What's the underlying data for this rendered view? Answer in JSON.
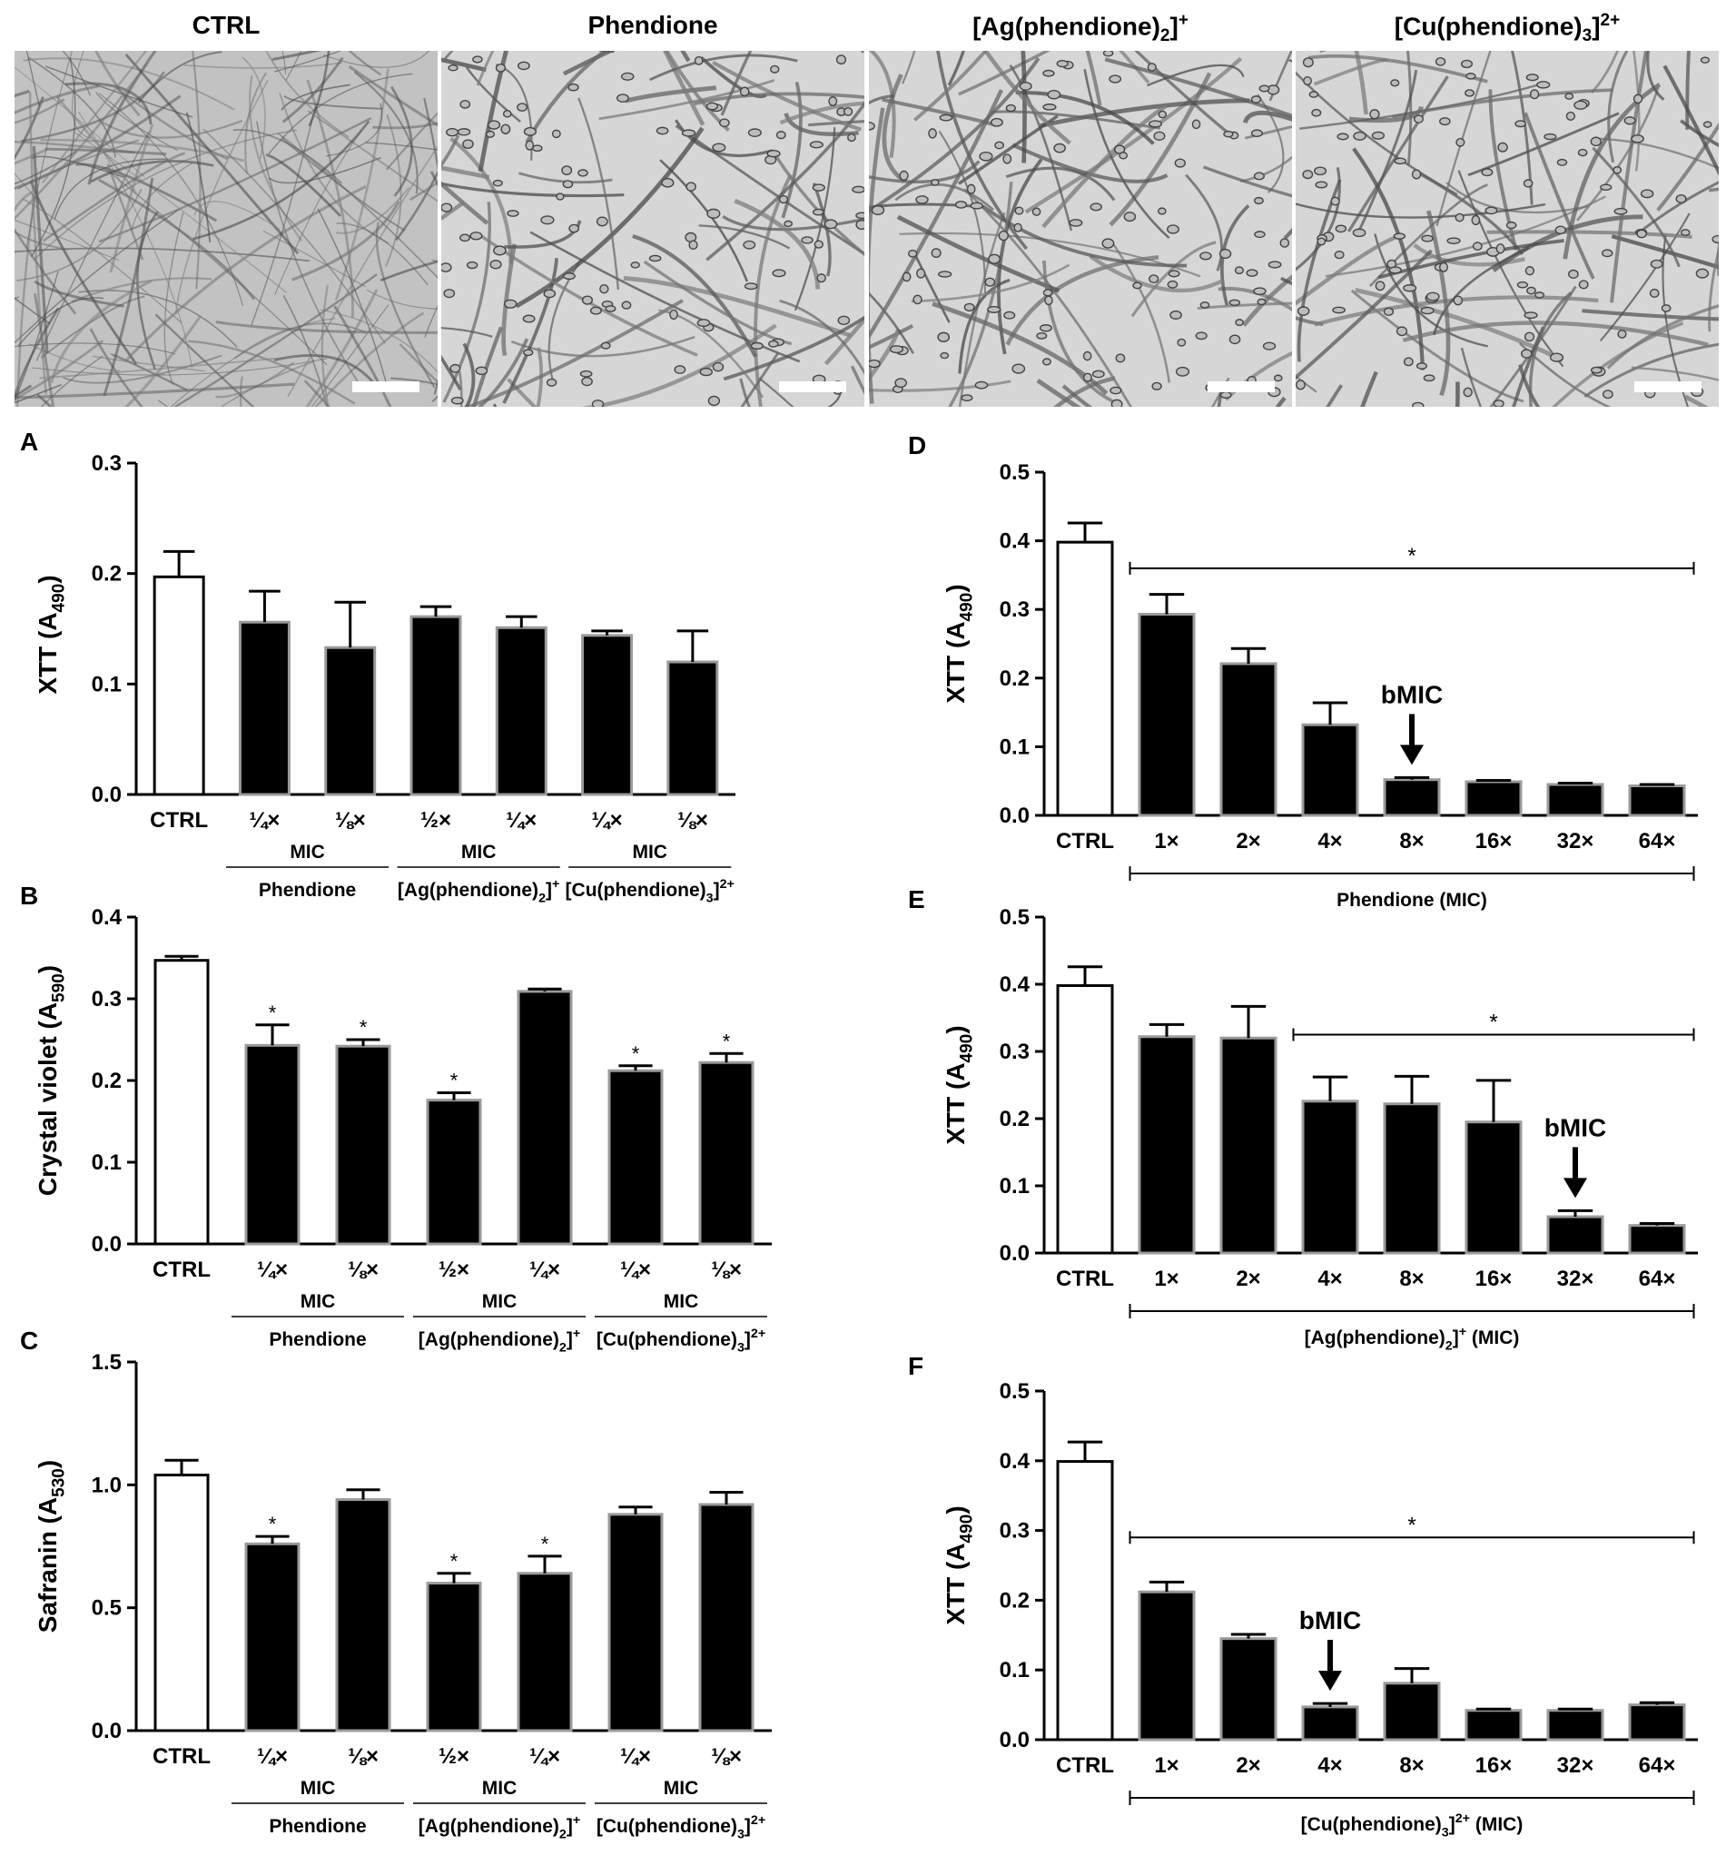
{
  "micrographs": [
    {
      "title_parts": [
        {
          "t": "CTRL"
        }
      ],
      "style": "dense"
    },
    {
      "title_parts": [
        {
          "t": "Phendione"
        }
      ],
      "style": "sparse"
    },
    {
      "title_parts": [
        {
          "t": "[Ag(phendione)"
        },
        {
          "t": "2",
          "sub": true
        },
        {
          "t": "]"
        },
        {
          "t": "+",
          "sup": true
        }
      ],
      "style": "sparse"
    },
    {
      "title_parts": [
        {
          "t": "[Cu(phendione)"
        },
        {
          "t": "3",
          "sub": true
        },
        {
          "t": "]"
        },
        {
          "t": "2+",
          "sup": true
        }
      ],
      "style": "sparse"
    }
  ],
  "chart_data": [
    {
      "panel": "A",
      "type": "bar",
      "ylabel": [
        {
          "t": "XTT (A"
        },
        {
          "t": "490",
          "sub": true
        },
        {
          "t": ")"
        }
      ],
      "ylim": [
        0,
        0.3
      ],
      "yticks": [
        "0.0",
        "0.1",
        "0.2",
        "0.3"
      ],
      "categories": [
        "CTRL",
        "¼×",
        "⅛×",
        "½×",
        "¼×",
        "¼×",
        "⅛×"
      ],
      "values": [
        0.197,
        0.156,
        0.133,
        0.161,
        0.151,
        0.144,
        0.12
      ],
      "errors": [
        0.023,
        0.028,
        0.041,
        0.009,
        0.01,
        0.004,
        0.028
      ],
      "significant": [
        false,
        false,
        false,
        false,
        false,
        false,
        false
      ],
      "bar_fill": [
        "white",
        "black",
        "black",
        "black",
        "black",
        "black",
        "black"
      ],
      "groups": [
        {
          "label": "MIC",
          "name": [
            {
              "t": "Phendione"
            }
          ],
          "from": 1,
          "to": 2
        },
        {
          "label": "MIC",
          "name": [
            {
              "t": "[Ag(phendione)"
            },
            {
              "t": "2",
              "sub": true
            },
            {
              "t": "]"
            },
            {
              "t": "+",
              "sup": true
            }
          ],
          "from": 3,
          "to": 4
        },
        {
          "label": "MIC",
          "name": [
            {
              "t": "[Cu(phendione)"
            },
            {
              "t": "3",
              "sub": true
            },
            {
              "t": "]"
            },
            {
              "t": "2+",
              "sup": true
            }
          ],
          "from": 5,
          "to": 6
        }
      ]
    },
    {
      "panel": "B",
      "type": "bar",
      "ylabel": [
        {
          "t": "Crystal violet (A"
        },
        {
          "t": "590",
          "sub": true
        },
        {
          "t": ")"
        }
      ],
      "ylim": [
        0,
        0.4
      ],
      "yticks": [
        "0.0",
        "0.1",
        "0.2",
        "0.3",
        "0.4"
      ],
      "categories": [
        "CTRL",
        "¼×",
        "⅛×",
        "½×",
        "¼×",
        "¼×",
        "⅛×"
      ],
      "values": [
        0.347,
        0.243,
        0.242,
        0.176,
        0.309,
        0.212,
        0.222
      ],
      "errors": [
        0.005,
        0.025,
        0.008,
        0.009,
        0.003,
        0.006,
        0.011
      ],
      "significant": [
        false,
        true,
        true,
        true,
        false,
        true,
        true
      ],
      "star": "*",
      "bar_fill": [
        "white",
        "black",
        "black",
        "black",
        "black",
        "black",
        "black"
      ],
      "groups": [
        {
          "label": "MIC",
          "name": [
            {
              "t": "Phendione"
            }
          ],
          "from": 1,
          "to": 2
        },
        {
          "label": "MIC",
          "name": [
            {
              "t": "[Ag(phendione)"
            },
            {
              "t": "2",
              "sub": true
            },
            {
              "t": "]"
            },
            {
              "t": "+",
              "sup": true
            }
          ],
          "from": 3,
          "to": 4
        },
        {
          "label": "MIC",
          "name": [
            {
              "t": "[Cu(phendione)"
            },
            {
              "t": "3",
              "sub": true
            },
            {
              "t": "]"
            },
            {
              "t": "2+",
              "sup": true
            }
          ],
          "from": 5,
          "to": 6
        }
      ]
    },
    {
      "panel": "C",
      "type": "bar",
      "ylabel": [
        {
          "t": "Safranin (A"
        },
        {
          "t": "530",
          "sub": true
        },
        {
          "t": ")"
        }
      ],
      "ylim": [
        0,
        1.5
      ],
      "yticks": [
        "0.0",
        "0.5",
        "1.0",
        "1.5"
      ],
      "categories": [
        "CTRL",
        "¼×",
        "⅛×",
        "½×",
        "¼×",
        "¼×",
        "⅛×"
      ],
      "values": [
        1.04,
        0.76,
        0.94,
        0.6,
        0.64,
        0.88,
        0.92
      ],
      "errors": [
        0.06,
        0.03,
        0.04,
        0.04,
        0.07,
        0.03,
        0.05
      ],
      "significant": [
        false,
        true,
        false,
        true,
        true,
        false,
        false
      ],
      "star": "*",
      "bar_fill": [
        "white",
        "black",
        "black",
        "black",
        "black",
        "black",
        "black"
      ],
      "groups": [
        {
          "label": "MIC",
          "name": [
            {
              "t": "Phendione"
            }
          ],
          "from": 1,
          "to": 2
        },
        {
          "label": "MIC",
          "name": [
            {
              "t": "[Ag(phendione)"
            },
            {
              "t": "2",
              "sub": true
            },
            {
              "t": "]"
            },
            {
              "t": "+",
              "sup": true
            }
          ],
          "from": 3,
          "to": 4
        },
        {
          "label": "MIC",
          "name": [
            {
              "t": "[Cu(phendione)"
            },
            {
              "t": "3",
              "sub": true
            },
            {
              "t": "]"
            },
            {
              "t": "2+",
              "sup": true
            }
          ],
          "from": 5,
          "to": 6
        }
      ]
    },
    {
      "panel": "D",
      "type": "bar",
      "ylabel": [
        {
          "t": "XTT (A"
        },
        {
          "t": "490",
          "sub": true
        },
        {
          "t": ")"
        }
      ],
      "ylim": [
        0,
        0.5
      ],
      "yticks": [
        "0.0",
        "0.1",
        "0.2",
        "0.3",
        "0.4",
        "0.5"
      ],
      "categories": [
        "CTRL",
        "1×",
        "2×",
        "4×",
        "8×",
        "16×",
        "32×",
        "64×"
      ],
      "values": [
        0.398,
        0.293,
        0.221,
        0.132,
        0.052,
        0.049,
        0.045,
        0.043
      ],
      "errors": [
        0.028,
        0.029,
        0.022,
        0.032,
        0.003,
        0.002,
        0.002,
        0.002
      ],
      "bar_fill": [
        "white",
        "black",
        "black",
        "black",
        "black",
        "black",
        "black",
        "black"
      ],
      "significance_bracket": {
        "from": 1,
        "to": 7,
        "value": 0.36,
        "label": "*"
      },
      "bmic": {
        "label": "bMIC",
        "index": 4
      },
      "xgroup": [
        {
          "t": "Phendione (MIC)"
        }
      ]
    },
    {
      "panel": "E",
      "type": "bar",
      "ylabel": [
        {
          "t": "XTT (A"
        },
        {
          "t": "490",
          "sub": true
        },
        {
          "t": ")"
        }
      ],
      "ylim": [
        0,
        0.5
      ],
      "yticks": [
        "0.0",
        "0.1",
        "0.2",
        "0.3",
        "0.4",
        "0.5"
      ],
      "categories": [
        "CTRL",
        "1×",
        "2×",
        "4×",
        "8×",
        "16×",
        "32×",
        "64×"
      ],
      "values": [
        0.398,
        0.322,
        0.32,
        0.226,
        0.222,
        0.195,
        0.054,
        0.041
      ],
      "errors": [
        0.028,
        0.018,
        0.047,
        0.036,
        0.041,
        0.062,
        0.009,
        0.003
      ],
      "bar_fill": [
        "white",
        "black",
        "black",
        "black",
        "black",
        "black",
        "black",
        "black"
      ],
      "significance_bracket": {
        "from": 3,
        "to": 7,
        "value": 0.325,
        "label": "*"
      },
      "bmic": {
        "label": "bMIC",
        "index": 6
      },
      "xgroup": [
        {
          "t": "[Ag(phendione)"
        },
        {
          "t": "2",
          "sub": true
        },
        {
          "t": "]"
        },
        {
          "t": "+",
          "sup": true
        },
        {
          "t": " (MIC)"
        }
      ]
    },
    {
      "panel": "F",
      "type": "bar",
      "ylabel": [
        {
          "t": "XTT (A"
        },
        {
          "t": "490",
          "sub": true
        },
        {
          "t": ")"
        }
      ],
      "ylim": [
        0,
        0.5
      ],
      "yticks": [
        "0.0",
        "0.1",
        "0.2",
        "0.3",
        "0.4",
        "0.5"
      ],
      "categories": [
        "CTRL",
        "1×",
        "2×",
        "4×",
        "8×",
        "16×",
        "32×",
        "64×"
      ],
      "values": [
        0.399,
        0.212,
        0.145,
        0.047,
        0.081,
        0.042,
        0.042,
        0.05
      ],
      "errors": [
        0.028,
        0.014,
        0.006,
        0.005,
        0.021,
        0.002,
        0.002,
        0.003
      ],
      "bar_fill": [
        "white",
        "black",
        "black",
        "black",
        "black",
        "black",
        "black",
        "black"
      ],
      "significance_bracket": {
        "from": 1,
        "to": 7,
        "value": 0.29,
        "label": "*"
      },
      "bmic": {
        "label": "bMIC",
        "index": 3
      },
      "xgroup": [
        {
          "t": "[Cu(phendione)"
        },
        {
          "t": "3",
          "sub": true
        },
        {
          "t": "]"
        },
        {
          "t": "2+",
          "sup": true
        },
        {
          "t": " (MIC)"
        }
      ]
    }
  ]
}
